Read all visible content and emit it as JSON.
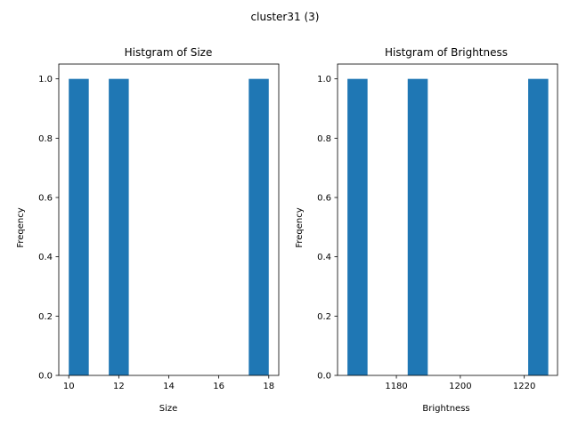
{
  "figure": {
    "suptitle": "cluster31 (3)",
    "bar_color": "#1f77b4"
  },
  "chart_data": [
    {
      "type": "bar",
      "title": "Histgram of Size",
      "xlabel": "Size",
      "ylabel": "Freqency",
      "xlim": [
        9.6,
        18.4
      ],
      "ylim": [
        0,
        1.05
      ],
      "xticks": [
        10,
        12,
        14,
        16,
        18
      ],
      "yticks": [
        0.0,
        0.2,
        0.4,
        0.6,
        0.8,
        1.0
      ],
      "bins": [
        {
          "x0": 10.0,
          "x1": 10.8,
          "count": 1
        },
        {
          "x0": 10.8,
          "x1": 11.6,
          "count": 0
        },
        {
          "x0": 11.6,
          "x1": 12.4,
          "count": 1
        },
        {
          "x0": 12.4,
          "x1": 13.2,
          "count": 0
        },
        {
          "x0": 13.2,
          "x1": 14.0,
          "count": 0
        },
        {
          "x0": 14.0,
          "x1": 14.8,
          "count": 0
        },
        {
          "x0": 14.8,
          "x1": 15.6,
          "count": 0
        },
        {
          "x0": 15.6,
          "x1": 16.4,
          "count": 0
        },
        {
          "x0": 16.4,
          "x1": 17.2,
          "count": 0
        },
        {
          "x0": 17.2,
          "x1": 18.0,
          "count": 1
        }
      ]
    },
    {
      "type": "bar",
      "title": "Histgram of Brightness",
      "xlabel": "Brightness",
      "ylabel": "Freqency",
      "xlim": [
        1161.6,
        1230.4
      ],
      "ylim": [
        0,
        1.05
      ],
      "xticks": [
        1180,
        1200,
        1220
      ],
      "yticks": [
        0.0,
        0.2,
        0.4,
        0.6,
        0.8,
        1.0
      ],
      "bins": [
        {
          "x0": 1164.7,
          "x1": 1170.98,
          "count": 1
        },
        {
          "x0": 1170.98,
          "x1": 1177.26,
          "count": 0
        },
        {
          "x0": 1177.26,
          "x1": 1183.54,
          "count": 0
        },
        {
          "x0": 1183.54,
          "x1": 1189.82,
          "count": 1
        },
        {
          "x0": 1189.82,
          "x1": 1196.1,
          "count": 0
        },
        {
          "x0": 1196.1,
          "x1": 1202.38,
          "count": 0
        },
        {
          "x0": 1202.38,
          "x1": 1208.66,
          "count": 0
        },
        {
          "x0": 1208.66,
          "x1": 1214.94,
          "count": 0
        },
        {
          "x0": 1214.94,
          "x1": 1221.22,
          "count": 0
        },
        {
          "x0": 1221.22,
          "x1": 1227.5,
          "count": 1
        }
      ]
    }
  ]
}
